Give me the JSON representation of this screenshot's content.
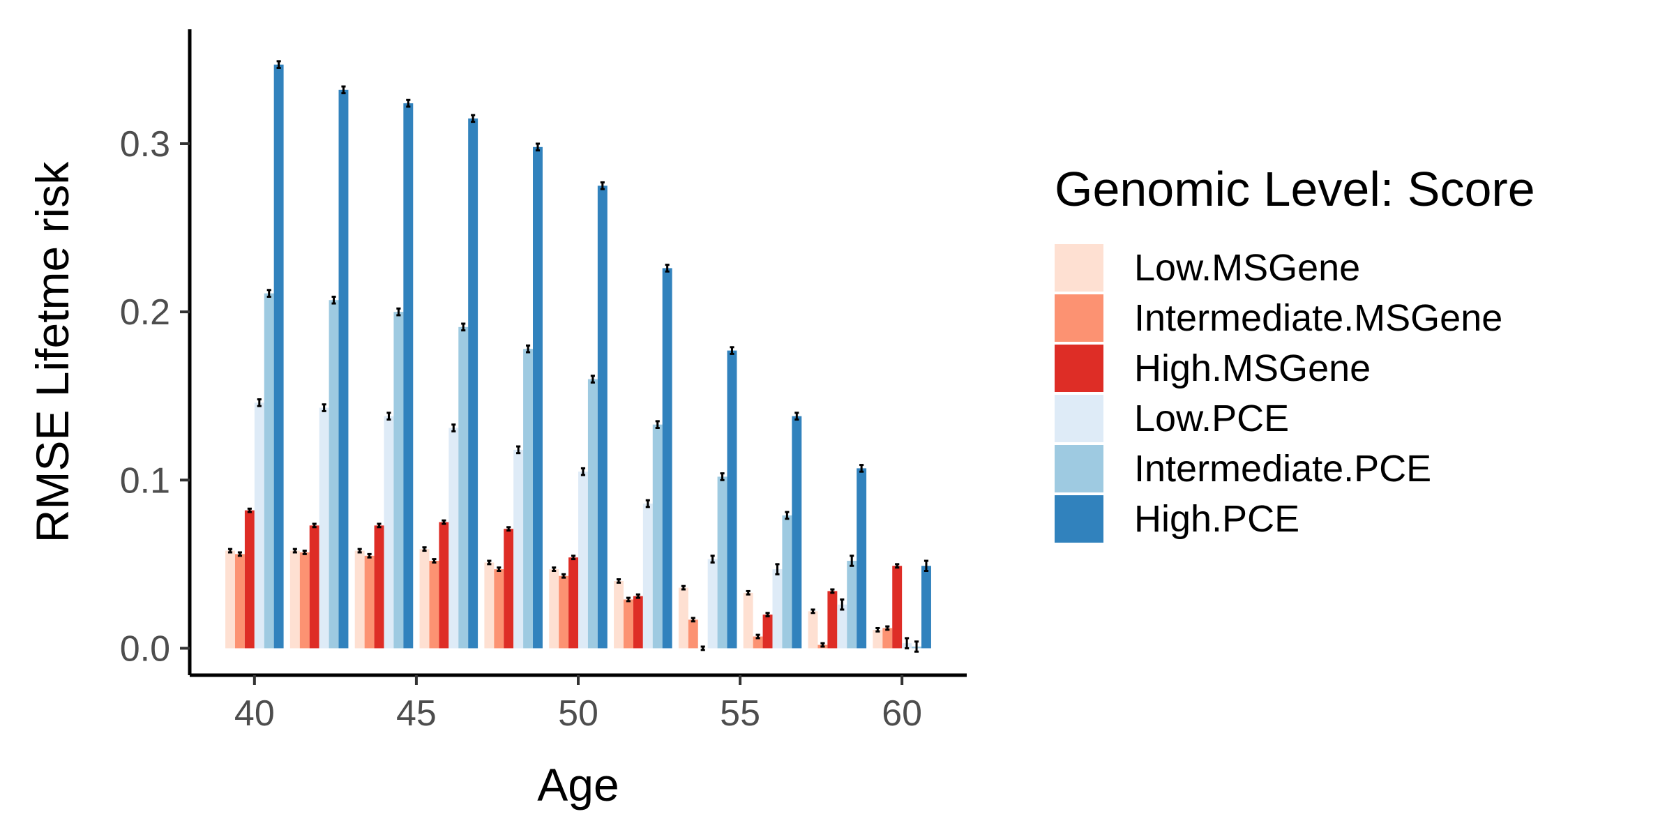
{
  "chart_data": {
    "type": "bar",
    "title": "",
    "xlabel": "Age",
    "ylabel": "RMSE Lifetme risk",
    "categories": [
      40,
      42,
      44,
      46,
      48,
      50,
      52,
      54,
      56,
      58,
      60
    ],
    "x_ticks": [
      "40",
      "45",
      "50",
      "55",
      "60"
    ],
    "y_ticks": [
      "0.0",
      "0.1",
      "0.2",
      "0.3"
    ],
    "xlim": [
      38,
      62
    ],
    "ylim": [
      -0.016,
      0.368
    ],
    "grid": false,
    "legend": {
      "title": "Genomic Level: Score",
      "position": "right"
    },
    "series": [
      {
        "name": "Low.MSGene",
        "color": "#FEE0D2",
        "values": [
          0.058,
          0.058,
          0.058,
          0.059,
          0.051,
          0.047,
          0.04,
          0.036,
          0.033,
          0.022,
          0.011
        ],
        "errors": [
          0.001,
          0.001,
          0.001,
          0.001,
          0.001,
          0.001,
          0.001,
          0.001,
          0.001,
          0.001,
          0.001
        ]
      },
      {
        "name": "Intermediate.MSGene",
        "color": "#FC9272",
        "values": [
          0.056,
          0.057,
          0.055,
          0.052,
          0.047,
          0.043,
          0.029,
          0.017,
          0.007,
          0.002,
          0.012
        ],
        "errors": [
          0.001,
          0.001,
          0.001,
          0.001,
          0.001,
          0.001,
          0.001,
          0.001,
          0.001,
          0.001,
          0.001
        ]
      },
      {
        "name": "High.MSGene",
        "color": "#DE2D26",
        "values": [
          0.082,
          0.073,
          0.073,
          0.075,
          0.071,
          0.054,
          0.031,
          0.0,
          0.02,
          0.034,
          0.049
        ],
        "errors": [
          0.001,
          0.001,
          0.001,
          0.001,
          0.001,
          0.001,
          0.001,
          0.001,
          0.001,
          0.001,
          0.001
        ]
      },
      {
        "name": "Low.PCE",
        "color": "#DEEBF7",
        "values": [
          0.146,
          0.143,
          0.138,
          0.131,
          0.118,
          0.105,
          0.086,
          0.053,
          0.047,
          0.026,
          0.003
        ],
        "errors": [
          0.002,
          0.002,
          0.002,
          0.002,
          0.002,
          0.002,
          0.002,
          0.002,
          0.003,
          0.003,
          0.003
        ]
      },
      {
        "name": "Intermediate.PCE",
        "color": "#9ECAE1",
        "values": [
          0.211,
          0.207,
          0.2,
          0.191,
          0.178,
          0.16,
          0.133,
          0.102,
          0.079,
          0.052,
          0.001
        ],
        "errors": [
          0.002,
          0.002,
          0.002,
          0.002,
          0.002,
          0.002,
          0.002,
          0.002,
          0.002,
          0.003,
          0.003
        ]
      },
      {
        "name": "High.PCE",
        "color": "#3182BD",
        "values": [
          0.347,
          0.332,
          0.324,
          0.315,
          0.298,
          0.275,
          0.226,
          0.177,
          0.138,
          0.107,
          0.049
        ],
        "errors": [
          0.002,
          0.002,
          0.002,
          0.002,
          0.002,
          0.002,
          0.002,
          0.002,
          0.002,
          0.002,
          0.003
        ]
      }
    ]
  }
}
